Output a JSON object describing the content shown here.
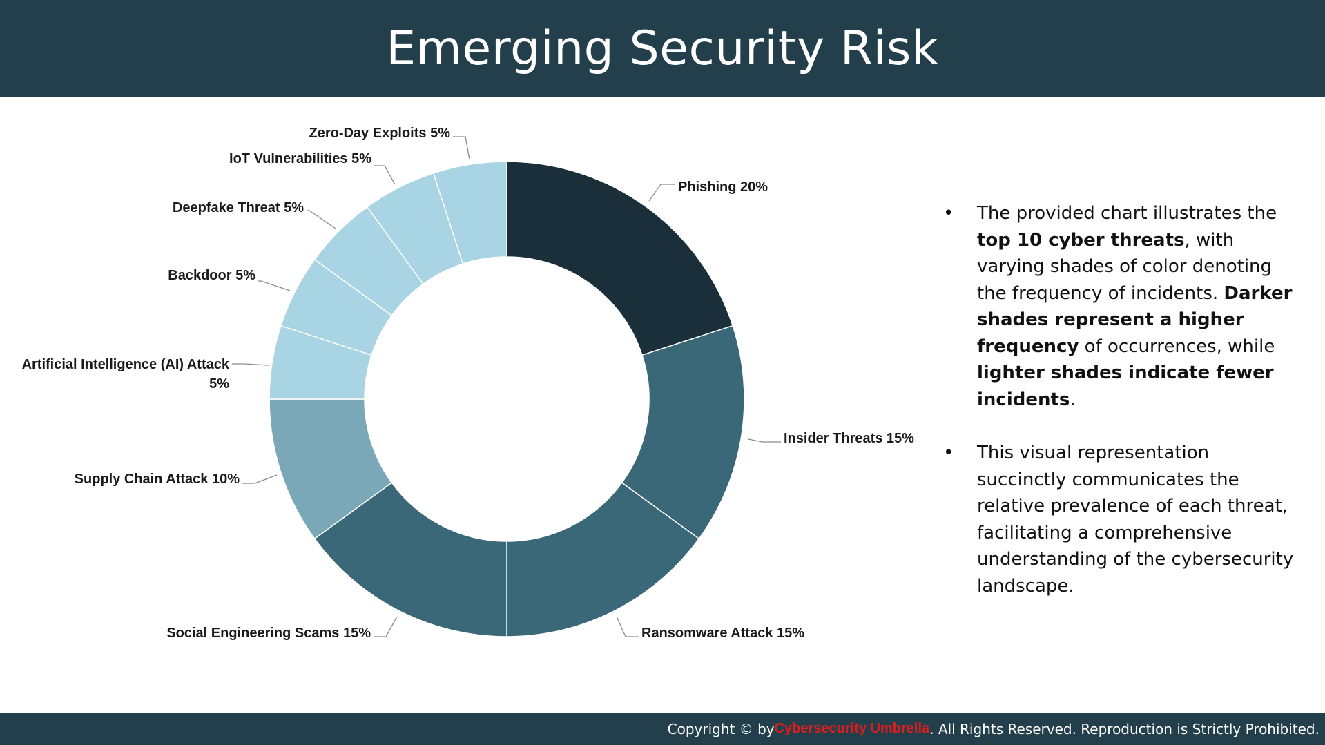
{
  "title": "Emerging Security Risk",
  "footer": {
    "prefix": "Copyright © by ",
    "brand": "Cybersecurity Umbrella",
    "suffix": ". All Rights Reserved. Reproduction is Strictly Prohibited."
  },
  "bullets": [
    {
      "bullet": "•",
      "segments": [
        {
          "text": "The provided chart illustrates the ",
          "bold": false
        },
        {
          "text": "top 10 cyber threats",
          "bold": true
        },
        {
          "text": ", with varying shades of color denoting the frequency of incidents. ",
          "bold": false
        },
        {
          "text": "Darker shades represent a higher frequency",
          "bold": true
        },
        {
          "text": " of occurrences, while ",
          "bold": false
        },
        {
          "text": "lighter shades indicate fewer incidents",
          "bold": true
        },
        {
          "text": ".",
          "bold": false
        }
      ]
    },
    {
      "bullet": "•",
      "segments": [
        {
          "text": "This visual representation succinctly communicates the relative prevalence of each threat, facilitating a comprehensive understanding of the cybersecurity landscape.",
          "bold": false
        }
      ]
    }
  ],
  "colors": {
    "header_bg": "#243f4c",
    "brand_red": "#e31b1b"
  },
  "chart_data": {
    "type": "pie",
    "variant": "donut",
    "title": "",
    "categories": [
      "Phishing",
      "Insider Threats",
      "Ransomware Attack",
      "Social Engineering Scams",
      "Supply Chain Attack",
      "Artificial Intelligence (AI) Attack",
      "Backdoor",
      "Deepfake Threat",
      "IoT Vulnerabilities",
      "Zero-Day Exploits"
    ],
    "values": [
      20,
      15,
      15,
      15,
      10,
      5,
      5,
      5,
      5,
      5
    ],
    "labels": [
      "Phishing 20%",
      "Insider Threats 15%",
      "Ransomware Attack 15%",
      "Social Engineering Scams 15%",
      "Supply Chain Attack 10%",
      "Artificial Intelligence (AI) Attack 5%",
      "Backdoor 5%",
      "Deepfake Threat 5%",
      "IoT Vulnerabilities 5%",
      "Zero-Day Exploits 5%"
    ],
    "colors": [
      "#1a2f3a",
      "#3a6878",
      "#3a6878",
      "#3a6878",
      "#7aa8b8",
      "#a8d4e4",
      "#a8d4e4",
      "#a8d4e4",
      "#a8d4e4",
      "#a8d4e4"
    ],
    "legend": "none"
  }
}
